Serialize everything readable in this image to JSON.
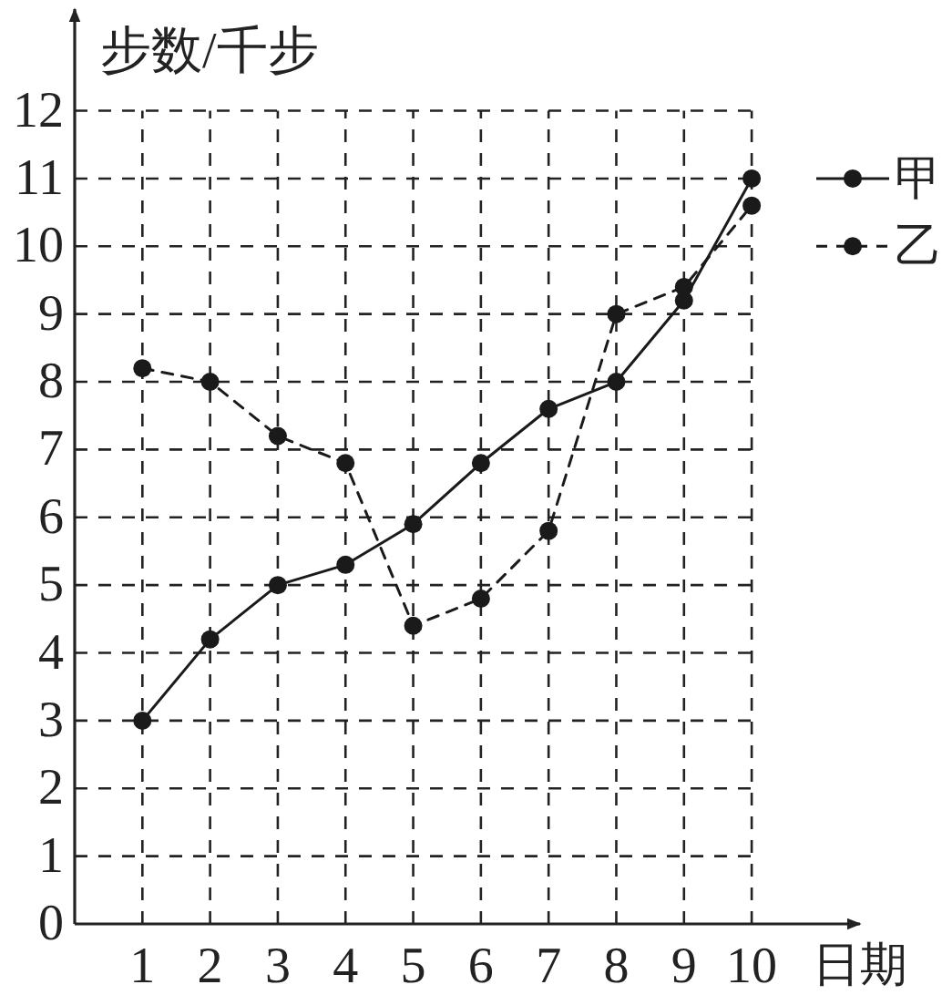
{
  "chart_data": {
    "type": "line",
    "xlabel": "日期",
    "ylabel": "步数/千步",
    "x": [
      1,
      2,
      3,
      4,
      5,
      6,
      7,
      8,
      9,
      10
    ],
    "series": [
      {
        "name": "甲",
        "color": "#1a1a1a",
        "line_style": "solid",
        "values": [
          3,
          4.2,
          5,
          5.3,
          5.9,
          6.8,
          7.6,
          8,
          9.2,
          11
        ]
      },
      {
        "name": "乙",
        "color": "#1a1a1a",
        "line_style": "dashed",
        "values": [
          8.2,
          8,
          7.2,
          6.8,
          4.4,
          4.8,
          5.8,
          9,
          9.4,
          10.6
        ]
      }
    ],
    "xlim": [
      0,
      11.6
    ],
    "ylim": [
      0,
      13.5
    ],
    "xticks": [
      1,
      2,
      3,
      4,
      5,
      6,
      7,
      8,
      9,
      10
    ],
    "yticks": [
      0,
      1,
      2,
      3,
      4,
      5,
      6,
      7,
      8,
      9,
      10,
      11,
      12
    ],
    "grid": true,
    "marker": "circle",
    "legend": "right"
  }
}
